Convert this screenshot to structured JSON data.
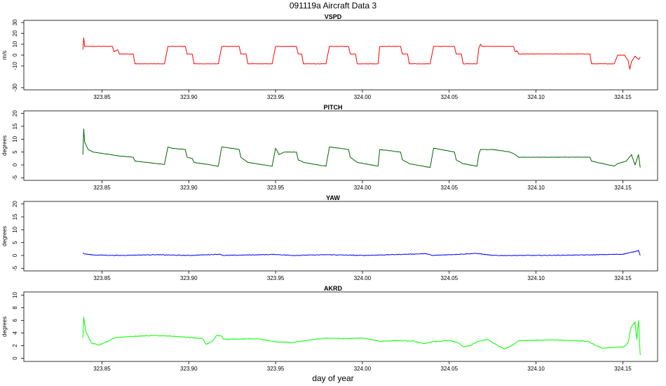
{
  "chart_data": {
    "type": "line",
    "title": "091119a   Aircraft Data 3",
    "xlabel": "day of year",
    "xlim": [
      323.805,
      324.17
    ],
    "x_ticks": [
      323.85,
      323.9,
      323.95,
      324.0,
      324.05,
      324.1,
      324.15
    ],
    "x_tick_labels": [
      "323.85",
      "323.90",
      "323.95",
      "324.00",
      "324.05",
      "324.10",
      "324.15"
    ],
    "grid": false,
    "panels": [
      {
        "name": "VSPD",
        "ylabel": "m/s",
        "color": "#ff0000",
        "ylim": [
          -32,
          32
        ],
        "y_ticks": [
          -30,
          -10,
          0,
          10,
          20,
          30
        ],
        "y_tick_labels": [
          "-30",
          "-10",
          "0",
          "10",
          "20",
          "30"
        ],
        "points": [
          [
            323.839,
            5
          ],
          [
            323.8395,
            16
          ],
          [
            323.84,
            8
          ],
          [
            323.856,
            8
          ],
          [
            323.857,
            3
          ],
          [
            323.859,
            5
          ],
          [
            323.86,
            1
          ],
          [
            323.868,
            1
          ],
          [
            323.869,
            -8
          ],
          [
            323.886,
            -8
          ],
          [
            323.888,
            8
          ],
          [
            323.898,
            8
          ],
          [
            323.899,
            1
          ],
          [
            323.902,
            1
          ],
          [
            323.903,
            -8
          ],
          [
            323.917,
            -8
          ],
          [
            323.919,
            8
          ],
          [
            323.929,
            8
          ],
          [
            323.93,
            1
          ],
          [
            323.933,
            1
          ],
          [
            323.934,
            -8
          ],
          [
            323.948,
            -8
          ],
          [
            323.95,
            8
          ],
          [
            323.962,
            8
          ],
          [
            323.963,
            1
          ],
          [
            323.965,
            1
          ],
          [
            323.966,
            -8
          ],
          [
            323.979,
            -8
          ],
          [
            323.981,
            8
          ],
          [
            323.992,
            8
          ],
          [
            323.993,
            1
          ],
          [
            323.996,
            1
          ],
          [
            323.997,
            -8
          ],
          [
            324.009,
            -8
          ],
          [
            324.01,
            8
          ],
          [
            324.022,
            8
          ],
          [
            324.023,
            1
          ],
          [
            324.026,
            1
          ],
          [
            324.027,
            -8
          ],
          [
            324.039,
            -8
          ],
          [
            324.041,
            8
          ],
          [
            324.053,
            8
          ],
          [
            324.054,
            1
          ],
          [
            324.057,
            1
          ],
          [
            324.058,
            -8
          ],
          [
            324.066,
            -8
          ],
          [
            324.067,
            6
          ],
          [
            324.068,
            10
          ],
          [
            324.069,
            8
          ],
          [
            324.087,
            8
          ],
          [
            324.088,
            3
          ],
          [
            324.089,
            4
          ],
          [
            324.09,
            1
          ],
          [
            324.131,
            1
          ],
          [
            324.132,
            -8
          ],
          [
            324.145,
            -8
          ],
          [
            324.147,
            0
          ],
          [
            324.151,
            0
          ],
          [
            324.153,
            -5
          ],
          [
            324.154,
            -13
          ],
          [
            324.155,
            -6
          ],
          [
            324.157,
            -1
          ],
          [
            324.159,
            -4
          ],
          [
            324.16,
            -2
          ]
        ]
      },
      {
        "name": "PITCH",
        "ylabel": "degrees",
        "color": "#006400",
        "ylim": [
          -6,
          21
        ],
        "y_ticks": [
          -5,
          0,
          5,
          10,
          15,
          20
        ],
        "y_tick_labels": [
          "-5",
          "0",
          "5",
          "10",
          "15",
          "20"
        ],
        "points": [
          [
            323.839,
            4
          ],
          [
            323.8395,
            14
          ],
          [
            323.84,
            9
          ],
          [
            323.842,
            6
          ],
          [
            323.845,
            5
          ],
          [
            323.855,
            4
          ],
          [
            323.86,
            3.5
          ],
          [
            323.868,
            3
          ],
          [
            323.869,
            1.5
          ],
          [
            323.886,
            0.2
          ],
          [
            323.888,
            7
          ],
          [
            323.89,
            6.5
          ],
          [
            323.898,
            6
          ],
          [
            323.899,
            3
          ],
          [
            323.902,
            2.5
          ],
          [
            323.903,
            1
          ],
          [
            323.917,
            -0.5
          ],
          [
            323.919,
            7
          ],
          [
            323.929,
            6
          ],
          [
            323.93,
            3
          ],
          [
            323.934,
            1
          ],
          [
            323.948,
            -0.5
          ],
          [
            323.95,
            6.5
          ],
          [
            323.952,
            4
          ],
          [
            323.955,
            5
          ],
          [
            323.962,
            5
          ],
          [
            323.963,
            2
          ],
          [
            323.966,
            1
          ],
          [
            323.979,
            -0.5
          ],
          [
            323.981,
            7
          ],
          [
            323.992,
            6
          ],
          [
            323.993,
            3
          ],
          [
            323.997,
            1
          ],
          [
            324.009,
            -0.5
          ],
          [
            324.01,
            6
          ],
          [
            324.022,
            5
          ],
          [
            324.023,
            2
          ],
          [
            324.027,
            0.5
          ],
          [
            324.039,
            -1
          ],
          [
            324.041,
            6.5
          ],
          [
            324.053,
            5
          ],
          [
            324.054,
            2
          ],
          [
            324.058,
            0.5
          ],
          [
            324.066,
            -0.5
          ],
          [
            324.067,
            4
          ],
          [
            324.068,
            6
          ],
          [
            324.075,
            6
          ],
          [
            324.085,
            5
          ],
          [
            324.088,
            4
          ],
          [
            324.09,
            3
          ],
          [
            324.131,
            3
          ],
          [
            324.132,
            1.5
          ],
          [
            324.145,
            -0.5
          ],
          [
            324.147,
            0.5
          ],
          [
            324.152,
            1.5
          ],
          [
            324.155,
            4
          ],
          [
            324.157,
            0
          ],
          [
            324.159,
            4
          ],
          [
            324.16,
            -1
          ]
        ]
      },
      {
        "name": "YAW",
        "ylabel": "degrees",
        "color": "#0000ff",
        "ylim": [
          -6,
          21
        ],
        "y_ticks": [
          -5,
          0,
          5,
          10,
          15,
          20
        ],
        "y_tick_labels": [
          "-5",
          "0",
          "5",
          "10",
          "15",
          "20"
        ],
        "points": [
          [
            323.839,
            1
          ],
          [
            323.84,
            0.6
          ],
          [
            323.845,
            0.2
          ],
          [
            323.86,
            0
          ],
          [
            323.88,
            0.3
          ],
          [
            323.9,
            0
          ],
          [
            323.918,
            0.5
          ],
          [
            323.92,
            0
          ],
          [
            323.95,
            0.4
          ],
          [
            323.96,
            0
          ],
          [
            323.98,
            0.3
          ],
          [
            324.0,
            0
          ],
          [
            324.037,
            0.7
          ],
          [
            324.04,
            0
          ],
          [
            324.066,
            0.8
          ],
          [
            324.075,
            0
          ],
          [
            324.1,
            0
          ],
          [
            324.13,
            0.2
          ],
          [
            324.15,
            0.5
          ],
          [
            324.157,
            1.5
          ],
          [
            324.159,
            2
          ],
          [
            324.16,
            0
          ]
        ]
      },
      {
        "name": "AKRD",
        "ylabel": "degrees",
        "color": "#00ff00",
        "ylim": [
          -0.5,
          10.5
        ],
        "y_ticks": [
          0,
          2,
          4,
          6,
          8,
          10
        ],
        "y_tick_labels": [
          "0",
          "2",
          "4",
          "6",
          "8",
          "10"
        ],
        "points": [
          [
            323.839,
            3.2
          ],
          [
            323.8395,
            6.5
          ],
          [
            323.841,
            4
          ],
          [
            323.844,
            2.4
          ],
          [
            323.848,
            2.1
          ],
          [
            323.852,
            2.5
          ],
          [
            323.858,
            3.3
          ],
          [
            323.87,
            3.5
          ],
          [
            323.88,
            3.6
          ],
          [
            323.89,
            3.5
          ],
          [
            323.9,
            3.3
          ],
          [
            323.908,
            3.1
          ],
          [
            323.91,
            2.2
          ],
          [
            323.914,
            2.8
          ],
          [
            323.916,
            3.6
          ],
          [
            323.919,
            3.5
          ],
          [
            323.92,
            3.0
          ],
          [
            323.94,
            3.1
          ],
          [
            323.946,
            2.8
          ],
          [
            323.95,
            2.6
          ],
          [
            323.96,
            2.5
          ],
          [
            323.97,
            2.9
          ],
          [
            323.98,
            3.2
          ],
          [
            323.99,
            3.1
          ],
          [
            324.0,
            3.2
          ],
          [
            324.01,
            2.7
          ],
          [
            324.02,
            2.8
          ],
          [
            324.03,
            2.7
          ],
          [
            324.035,
            2.3
          ],
          [
            324.04,
            2.6
          ],
          [
            324.05,
            2.8
          ],
          [
            324.055,
            2.5
          ],
          [
            324.058,
            1.8
          ],
          [
            324.062,
            2.0
          ],
          [
            324.066,
            2.6
          ],
          [
            324.072,
            3.0
          ],
          [
            324.078,
            2.0
          ],
          [
            324.082,
            1.5
          ],
          [
            324.086,
            2.0
          ],
          [
            324.09,
            2.8
          ],
          [
            324.11,
            2.9
          ],
          [
            324.13,
            2.7
          ],
          [
            324.134,
            2.1
          ],
          [
            324.138,
            1.6
          ],
          [
            324.145,
            1.7
          ],
          [
            324.15,
            1.8
          ],
          [
            324.153,
            2.5
          ],
          [
            324.155,
            5.0
          ],
          [
            324.157,
            5.8
          ],
          [
            324.158,
            3.0
          ],
          [
            324.159,
            6.0
          ],
          [
            324.16,
            0.5
          ]
        ]
      }
    ]
  }
}
